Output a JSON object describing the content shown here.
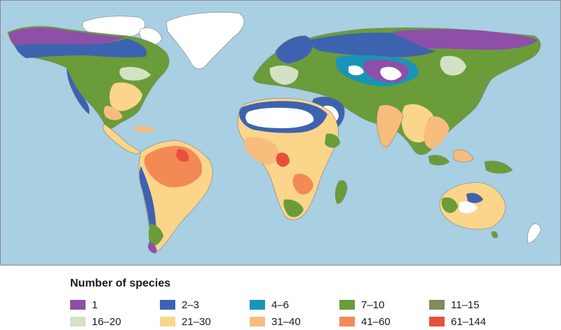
{
  "map": {
    "colors": {
      "ocean": "#a9cfe2",
      "ice_or_unsampled": "#ffffff",
      "border": "#8a8a8a"
    }
  },
  "legend": {
    "title": "Number of species",
    "items": [
      {
        "label": "1",
        "color": "#8e4fa8"
      },
      {
        "label": "2–3",
        "color": "#3d63b0"
      },
      {
        "label": "4–6",
        "color": "#1795b8"
      },
      {
        "label": "7–10",
        "color": "#6a9c3a"
      },
      {
        "label": "11–15",
        "color": "#7e8b60"
      },
      {
        "label": "16–20",
        "color": "#d3e2c5"
      },
      {
        "label": "21–30",
        "color": "#fbd58a"
      },
      {
        "label": "31–40",
        "color": "#f8bd7d"
      },
      {
        "label": "41–60",
        "color": "#f38a55"
      },
      {
        "label": "61–144",
        "color": "#e9503a"
      }
    ]
  }
}
